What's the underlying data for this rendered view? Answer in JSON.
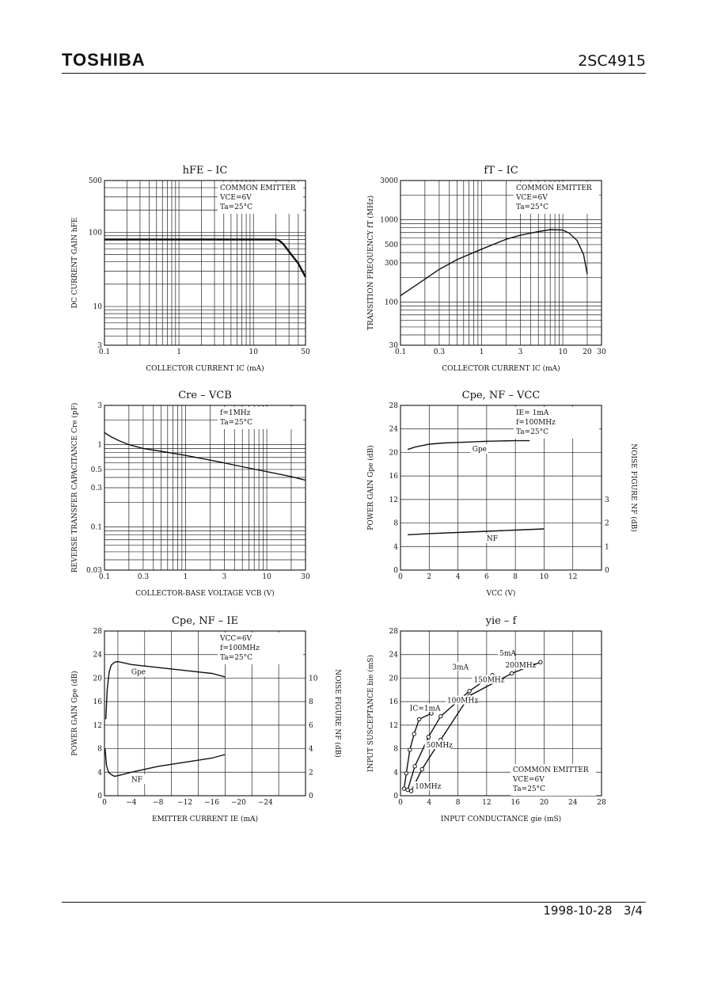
{
  "header": {
    "brand": "TOSHIBA",
    "part_number": "2SC4915"
  },
  "footer": {
    "date": "1998-10-28",
    "page": "3/4"
  },
  "chart_data": [
    {
      "id": "hfe_ic",
      "type": "line",
      "title": "hFE – IC",
      "xlabel": "COLLECTOR CURRENT IC (mA)",
      "ylabel": "DC CURRENT GAIN hFE",
      "xscale": "log",
      "yscale": "log",
      "xlim": [
        0.1,
        50
      ],
      "ylim": [
        3,
        500
      ],
      "xticks": [
        0.1,
        1,
        10,
        50
      ],
      "yticks": [
        3,
        10,
        100,
        500
      ],
      "annotations": [
        "COMMON EMITTER",
        "VCE=6V",
        "Ta=25°C"
      ],
      "series": [
        {
          "x": [
            0.1,
            20,
            22,
            25,
            30,
            40,
            50
          ],
          "y": [
            80,
            80,
            78,
            70,
            55,
            38,
            25
          ]
        }
      ]
    },
    {
      "id": "ft_ic",
      "type": "line",
      "title": "fT – IC",
      "xlabel": "COLLECTOR CURRENT IC (mA)",
      "ylabel": "TRANSITION FREQUENCY fT (MHz)",
      "xscale": "log",
      "yscale": "log",
      "xlim": [
        0.1,
        30
      ],
      "ylim": [
        30,
        3000
      ],
      "xticks": [
        0.1,
        0.3,
        1,
        3,
        10,
        20,
        30
      ],
      "yticks": [
        30,
        100,
        300,
        500,
        1000,
        3000
      ],
      "annotations": [
        "COMMON EMITTER",
        "VCE=6V",
        "Ta=25°C"
      ],
      "series": [
        {
          "x": [
            0.1,
            0.2,
            0.3,
            0.5,
            1,
            2,
            3,
            5,
            7,
            10,
            12,
            15,
            18,
            20
          ],
          "y": [
            120,
            190,
            250,
            330,
            440,
            580,
            650,
            720,
            760,
            750,
            690,
            560,
            380,
            220
          ]
        }
      ]
    },
    {
      "id": "cre_vcb",
      "type": "line",
      "title": "Cre – VCB",
      "xlabel": "COLLECTOR-BASE VOLTAGE VCB (V)",
      "ylabel": "REVERSE TRANSFER CAPACITANCE Cre (pF)",
      "xscale": "log",
      "yscale": "log",
      "xlim": [
        0.1,
        30
      ],
      "ylim": [
        0.03,
        3
      ],
      "xticks": [
        0.1,
        0.3,
        1,
        3,
        10,
        30
      ],
      "yticks": [
        0.03,
        0.1,
        0.3,
        0.5,
        1,
        3
      ],
      "annotations": [
        "f=1MHz",
        "Ta=25°C"
      ],
      "series": [
        {
          "x": [
            0.1,
            0.12,
            0.15,
            0.2,
            0.3,
            0.5,
            1,
            2,
            3,
            5,
            10,
            20,
            30
          ],
          "y": [
            1.4,
            1.25,
            1.12,
            1.0,
            0.9,
            0.83,
            0.74,
            0.65,
            0.6,
            0.54,
            0.47,
            0.41,
            0.37
          ]
        }
      ]
    },
    {
      "id": "cpe_nf_vcc",
      "type": "line",
      "title": "Cpe, NF – VCC",
      "xlabel": "VCC (V)",
      "ylabel": "POWER GAIN Gpe (dB)",
      "y2label": "NOISE FIGURE NF (dB)",
      "xlim": [
        0,
        14
      ],
      "ylim": [
        0,
        28
      ],
      "y2lim": [
        0,
        7
      ],
      "xticks": [
        0,
        2,
        4,
        6,
        8,
        10,
        12
      ],
      "yticks": [
        0,
        4,
        8,
        12,
        16,
        20,
        24,
        28
      ],
      "y2ticks": [
        0,
        1,
        2,
        3
      ],
      "annotations": [
        "IE= 1mA",
        "f=100MHz",
        "Ta=25°C"
      ],
      "series": [
        {
          "name": "Gpe",
          "axis": "left",
          "x": [
            0.5,
            1,
            2,
            3,
            4,
            5,
            6,
            7,
            8,
            9
          ],
          "y": [
            20.5,
            20.9,
            21.4,
            21.6,
            21.7,
            21.8,
            21.9,
            21.95,
            22.0,
            22.0
          ]
        },
        {
          "name": "NF",
          "axis": "right",
          "x": [
            0.5,
            2,
            4,
            6,
            8,
            10
          ],
          "y": [
            1.5,
            1.55,
            1.6,
            1.65,
            1.7,
            1.75
          ]
        }
      ]
    },
    {
      "id": "cpe_nf_ie",
      "type": "line",
      "title": "Cpe, NF – IE",
      "xlabel": "EMITTER CURRENT IE (mA)",
      "ylabel": "POWER GAIN Gpe (dB)",
      "y2label": "NOISE FIGURE NF (dB)",
      "xlim": [
        0,
        -30
      ],
      "ylim": [
        0,
        28
      ],
      "y2lim": [
        0,
        14
      ],
      "xticks": [
        0,
        -4,
        -8,
        -12,
        -16,
        -20,
        -24
      ],
      "yticks": [
        0,
        4,
        8,
        12,
        16,
        20,
        24,
        28
      ],
      "y2ticks": [
        0,
        2,
        4,
        6,
        8,
        10
      ],
      "annotations": [
        "VCC=6V",
        "f=100MHz",
        "Ta=25°C"
      ],
      "series": [
        {
          "name": "Gpe",
          "axis": "left",
          "x": [
            -0.2,
            -0.4,
            -0.7,
            -1,
            -1.5,
            -2,
            -4,
            -8,
            -12,
            -16,
            -18
          ],
          "y": [
            13,
            18,
            21,
            22.2,
            22.7,
            22.8,
            22.3,
            21.8,
            21.3,
            20.8,
            20.2
          ]
        },
        {
          "name": "NF",
          "axis": "right",
          "x": [
            -0.1,
            -0.3,
            -0.6,
            -1,
            -1.5,
            -2,
            -4,
            -8,
            -12,
            -16,
            -18
          ],
          "y": [
            4,
            2.6,
            2.0,
            1.8,
            1.65,
            1.7,
            2.0,
            2.5,
            2.85,
            3.2,
            3.5
          ]
        }
      ]
    },
    {
      "id": "yie_f",
      "type": "scatter",
      "title": "yie – f",
      "xlabel": "INPUT CONDUCTANCE gie (mS)",
      "ylabel": "INPUT SUSCEPTANCE bie (mS)",
      "xlim": [
        0,
        28
      ],
      "ylim": [
        0,
        28
      ],
      "xticks": [
        0,
        4,
        8,
        12,
        16,
        20,
        24,
        28
      ],
      "yticks": [
        0,
        4,
        8,
        12,
        16,
        20,
        24,
        28
      ],
      "annotations": [
        "COMMON EMITTER",
        "VCE=6V",
        "Ta=25°C"
      ],
      "series": [
        {
          "name": "IC=1mA",
          "x": [
            0.5,
            0.8,
            1.3,
            1.9,
            2.6,
            4.3
          ],
          "y": [
            1.2,
            3.8,
            7.8,
            10.5,
            13.0,
            14.0
          ]
        },
        {
          "name": "3mA",
          "x": [
            1.0,
            2.0,
            3.9,
            5.6,
            9.6,
            12.8
          ],
          "y": [
            1.0,
            5.0,
            10.0,
            13.5,
            17.8,
            20.5
          ]
        },
        {
          "name": "5mA",
          "x": [
            1.5,
            3.0,
            5.6,
            9.6,
            15.5,
            19.5
          ],
          "y": [
            0.8,
            4.5,
            9.5,
            17.0,
            20.8,
            22.7
          ]
        }
      ],
      "point_labels": [
        "IC=1mA",
        "3mA",
        "5mA",
        "10MHz",
        "50MHz",
        "100MHz",
        "150MHz",
        "200MHz"
      ]
    }
  ]
}
